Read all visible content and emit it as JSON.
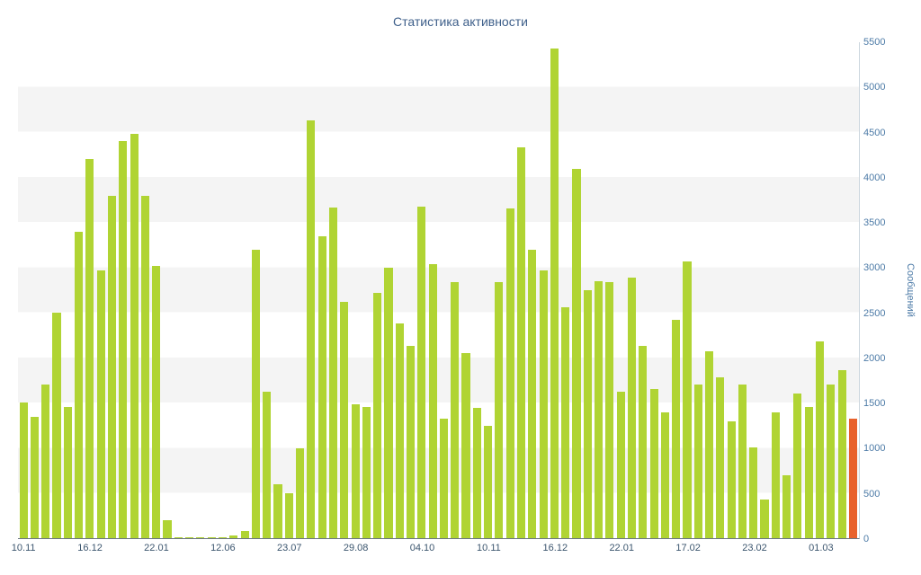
{
  "chart_data": {
    "type": "bar",
    "title": "Статистика активности",
    "y_axis_title": "Сообщений",
    "ylim": [
      0,
      5500
    ],
    "y_ticks": [
      0,
      500,
      1000,
      1500,
      2000,
      2500,
      3000,
      3500,
      4000,
      4500,
      5000,
      5500
    ],
    "x_tick_labels": [
      "10.11",
      "16.12",
      "22.01",
      "12.06",
      "23.07",
      "29.08",
      "04.10",
      "10.11",
      "16.12",
      "22.01",
      "17.02",
      "23.02",
      "01.03"
    ],
    "label_every": 6,
    "values": [
      1500,
      1350,
      1700,
      2500,
      1450,
      3400,
      4200,
      2970,
      3800,
      4400,
      4480,
      3800,
      3020,
      200,
      15,
      15,
      10,
      10,
      15,
      30,
      80,
      3200,
      1620,
      600,
      500,
      1000,
      4630,
      3350,
      3670,
      2620,
      1480,
      1450,
      2720,
      3000,
      2380,
      2130,
      3680,
      3040,
      1330,
      2840,
      2050,
      1440,
      1250,
      2840,
      3660,
      4330,
      3200,
      2970,
      5430,
      2560,
      4100,
      2750,
      2850,
      2840,
      1620,
      2890,
      2130,
      1650,
      1400,
      2420,
      3070,
      1700,
      2070,
      1780,
      1300,
      1700,
      1010,
      430,
      1400,
      700,
      1600,
      1450,
      2180,
      1700,
      1860,
      1330
    ],
    "highlight_last": true,
    "grid": "striped-bands",
    "legend": "none",
    "colors": {
      "bar": "#b0d433",
      "last_bar": "#e8612c",
      "band": "#f4f4f4",
      "title": "#3e5f8a",
      "y_tick": "#4d7ba7",
      "x_tick": "#3b556e",
      "axis_line": "#ccd6de",
      "baseline": "#6b7682"
    }
  }
}
